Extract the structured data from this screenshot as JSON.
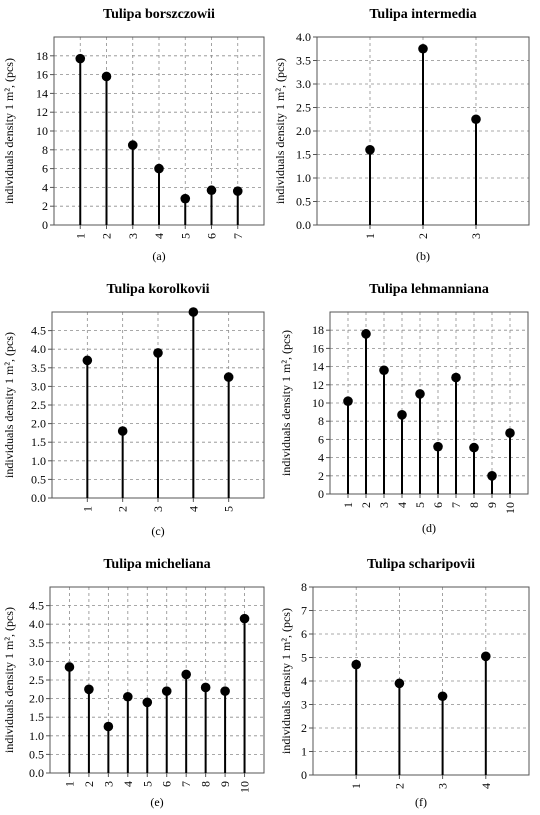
{
  "chart_data": [
    {
      "id": "a",
      "type": "stem",
      "title": "Tulipa borszczowii",
      "ylabel": "individuals density 1 m², (pcs)",
      "panel_label": "(a)",
      "ylim": [
        0,
        20
      ],
      "yticks": [
        0,
        2,
        4,
        6,
        8,
        10,
        12,
        14,
        16,
        18
      ],
      "categories": [
        "1",
        "2",
        "3",
        "4",
        "5",
        "6",
        "7"
      ],
      "values": [
        17.7,
        15.8,
        8.5,
        6.0,
        2.8,
        3.7,
        3.6
      ],
      "grid": true
    },
    {
      "id": "b",
      "type": "stem",
      "title": "Tulipa intermedia",
      "ylabel": "individuals density 1 m², (pcs)",
      "panel_label": "(b)",
      "ylim": [
        0,
        4.0
      ],
      "yticks": [
        0.0,
        0.5,
        1.0,
        1.5,
        2.0,
        2.5,
        3.0,
        3.5,
        4.0
      ],
      "categories": [
        "1",
        "2",
        "3"
      ],
      "values": [
        1.6,
        3.75,
        2.25
      ],
      "grid": true
    },
    {
      "id": "c",
      "type": "stem",
      "title": "Tulipa korolkovii",
      "ylabel": "individuals density 1 m², (pcs)",
      "panel_label": "(c)",
      "ylim": [
        0,
        5.0
      ],
      "yticks": [
        0.0,
        0.5,
        1.0,
        1.5,
        2.0,
        2.5,
        3.0,
        3.5,
        4.0,
        4.5
      ],
      "categories": [
        "1",
        "2",
        "3",
        "4",
        "5"
      ],
      "values": [
        3.7,
        1.8,
        3.9,
        5.0,
        3.25
      ],
      "grid": true
    },
    {
      "id": "d",
      "type": "stem",
      "title": "Tulipa lehmanniana",
      "ylabel": "individuals density 1 m², (pcs)",
      "panel_label": "(d)",
      "ylim": [
        0,
        20
      ],
      "yticks": [
        0,
        2,
        4,
        6,
        8,
        10,
        12,
        14,
        16,
        18
      ],
      "categories": [
        "1",
        "2",
        "3",
        "4",
        "5",
        "6",
        "7",
        "8",
        "9",
        "10"
      ],
      "values": [
        10.2,
        17.6,
        13.6,
        8.7,
        11.0,
        5.2,
        12.8,
        5.1,
        2.0,
        6.7
      ],
      "grid": true
    },
    {
      "id": "e",
      "type": "stem",
      "title": "Tulipa micheliana",
      "ylabel": "individuals density 1 m², (pcs)",
      "panel_label": "(e)",
      "ylim": [
        0,
        5.0
      ],
      "yticks": [
        0.0,
        0.5,
        1.0,
        1.5,
        2.0,
        2.5,
        3.0,
        3.5,
        4.0,
        4.5
      ],
      "categories": [
        "1",
        "2",
        "3",
        "4",
        "5",
        "6",
        "7",
        "8",
        "9",
        "10"
      ],
      "values": [
        2.85,
        2.25,
        1.25,
        2.05,
        1.9,
        2.2,
        2.65,
        2.3,
        2.2,
        4.15
      ],
      "grid": true
    },
    {
      "id": "f",
      "type": "stem",
      "title": "Tulipa scharipovii",
      "ylabel": "individuals density 1 m², (pcs)",
      "panel_label": "(f)",
      "ylim": [
        0,
        8
      ],
      "yticks": [
        0,
        1,
        2,
        3,
        4,
        5,
        6,
        7,
        8
      ],
      "categories": [
        "1",
        "2",
        "3",
        "4"
      ],
      "values": [
        4.7,
        3.9,
        3.35,
        5.05
      ],
      "grid": true
    }
  ],
  "colors": {
    "stem": "#000000",
    "marker": "#000000",
    "grid": "#8c8c8c",
    "axes_border": "#555555"
  }
}
